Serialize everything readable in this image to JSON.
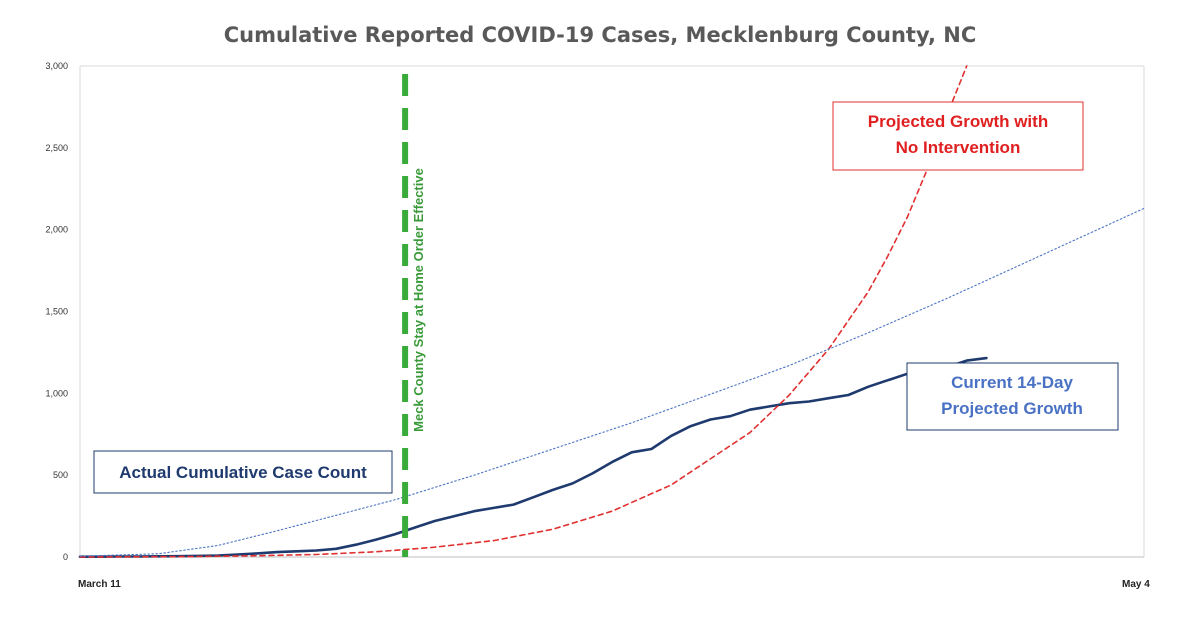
{
  "chart_data": {
    "type": "line",
    "title": "Cumulative Reported COVID-19 Cases, Mecklenburg County, NC",
    "xlabel": "",
    "ylabel": "",
    "x_ticks": [
      "March 11",
      "May 4"
    ],
    "x_range_days": [
      0,
      54
    ],
    "ylim": [
      0,
      3000
    ],
    "y_ticks": [
      0,
      500,
      1000,
      1500,
      2000,
      2500,
      3000
    ],
    "y_tick_labels": [
      "0",
      "500",
      "1,000",
      "1,500",
      "2,000",
      "2,500",
      "3,000"
    ],
    "grid": false,
    "series": [
      {
        "label": "Actual Cumulative Case Count",
        "style": "solid",
        "color": "#1f3a6e",
        "x": [
          0,
          1,
          2,
          3,
          4,
          5,
          6,
          7,
          8,
          9,
          10,
          11,
          12,
          13,
          14,
          15,
          16,
          17,
          18,
          19,
          20,
          21,
          22,
          23,
          24,
          25,
          26,
          27,
          28,
          29,
          30,
          31,
          32,
          33,
          34,
          35,
          36,
          37,
          38,
          39,
          40,
          41,
          42,
          43,
          44,
          45,
          46,
          47,
          48,
          49,
          50,
          51,
          52,
          53,
          54
        ],
        "y": [
          2,
          2,
          3,
          3,
          4,
          5,
          7,
          9,
          15,
          22,
          30,
          35,
          40,
          50,
          75,
          105,
          140,
          180,
          220,
          250,
          280,
          300,
          320,
          365,
          410,
          450,
          510,
          580,
          640,
          660,
          740,
          800,
          840,
          860,
          900,
          920,
          940,
          950,
          970,
          990,
          1040,
          1080,
          1120,
          1140,
          1160,
          1200,
          1215,
          null,
          null,
          null,
          null,
          null,
          null,
          null,
          null
        ]
      },
      {
        "label": "Projected Growth with No Intervention",
        "style": "dashed",
        "color": "#e03030",
        "x": [
          0,
          3,
          6,
          9,
          12,
          15,
          18,
          21,
          24,
          27,
          30,
          33,
          34,
          36,
          38,
          40,
          41,
          42,
          43,
          44,
          45,
          46,
          47,
          48,
          49,
          50,
          51,
          52,
          53,
          54
        ],
        "y": [
          0,
          1,
          3,
          8,
          15,
          32,
          60,
          100,
          170,
          280,
          440,
          680,
          760,
          990,
          1270,
          1620,
          1840,
          2080,
          2370,
          2700,
          3000,
          null,
          null,
          null,
          null,
          null,
          null,
          null,
          null,
          null
        ]
      },
      {
        "label": "Current 14-Day Projected Growth",
        "style": "dotted",
        "color": "#4a72c4",
        "x": [
          0,
          4,
          7,
          10,
          13,
          16,
          20,
          24,
          28,
          32,
          36,
          40,
          44,
          48,
          52,
          54
        ],
        "y": [
          5,
          20,
          70,
          160,
          255,
          350,
          500,
          660,
          820,
          995,
          1170,
          1370,
          1580,
          1800,
          2020,
          2130
        ]
      }
    ],
    "annotations": [
      {
        "text": "Meck County Stay at Home Order Effective",
        "type": "vertical-line",
        "x": 16.5,
        "color": "#3aaa3a"
      }
    ],
    "labels": {
      "actual": "Actual Cumulative Case Count",
      "no_intervention_line1": "Projected Growth with",
      "no_intervention_line2": "No Intervention",
      "current_line1": "Current 14-Day",
      "current_line2": "Projected Growth"
    }
  }
}
